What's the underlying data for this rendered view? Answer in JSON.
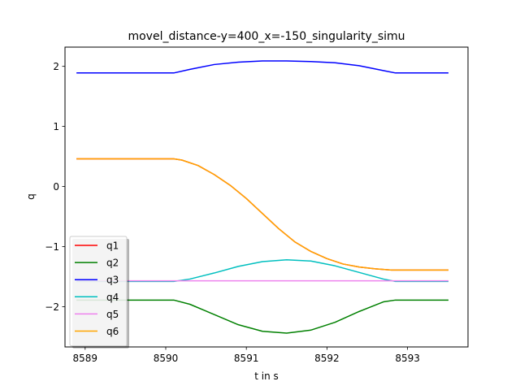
{
  "chart_data": {
    "type": "line",
    "title": "movel_distance-y=400_x=-150_singularity_simu",
    "xlabel": "t in s",
    "ylabel": "q",
    "xlim": [
      8588.75,
      8593.75
    ],
    "ylim": [
      -2.67,
      2.32
    ],
    "xticks": [
      8589,
      8590,
      8591,
      8592,
      8593
    ],
    "xtick_labels": [
      "8589",
      "8590",
      "8591",
      "8592",
      "8593"
    ],
    "yticks": [
      -2,
      -1,
      0,
      1,
      2
    ],
    "ytick_labels": [
      "−2",
      "−1",
      "0",
      "1",
      "2"
    ],
    "grid": false,
    "legend_position": "lower-left",
    "series": [
      {
        "name": "q1",
        "color": "#ff0000",
        "x": [
          8588.9,
          8590.1,
          8590.2,
          8590.4,
          8590.6,
          8590.8,
          8591.0,
          8591.2,
          8591.4,
          8591.6,
          8591.8,
          8592.0,
          8592.2,
          8592.4,
          8592.6,
          8592.8,
          8593.5
        ],
        "y": [
          0.46,
          0.46,
          0.44,
          0.35,
          0.2,
          0.02,
          -0.2,
          -0.45,
          -0.7,
          -0.92,
          -1.08,
          -1.2,
          -1.29,
          -1.34,
          -1.37,
          -1.39,
          -1.39
        ]
      },
      {
        "name": "q2",
        "color": "#008000",
        "x": [
          8588.9,
          8590.1,
          8590.3,
          8590.6,
          8590.9,
          8591.2,
          8591.5,
          8591.8,
          8592.1,
          8592.4,
          8592.7,
          8592.85,
          8593.5
        ],
        "y": [
          -1.89,
          -1.89,
          -1.96,
          -2.13,
          -2.3,
          -2.41,
          -2.44,
          -2.39,
          -2.26,
          -2.08,
          -1.92,
          -1.89,
          -1.89
        ]
      },
      {
        "name": "q3",
        "color": "#0000ff",
        "x": [
          8588.9,
          8590.1,
          8590.3,
          8590.6,
          8590.9,
          8591.2,
          8591.5,
          8591.8,
          8592.1,
          8592.4,
          8592.7,
          8592.85,
          8593.5
        ],
        "y": [
          1.89,
          1.89,
          1.95,
          2.03,
          2.07,
          2.09,
          2.09,
          2.08,
          2.06,
          2.01,
          1.93,
          1.89,
          1.89
        ]
      },
      {
        "name": "q4",
        "color": "#00bfbf",
        "x": [
          8588.9,
          8590.1,
          8590.3,
          8590.6,
          8590.9,
          8591.2,
          8591.5,
          8591.8,
          8592.1,
          8592.4,
          8592.7,
          8592.85,
          8593.5
        ],
        "y": [
          -1.58,
          -1.58,
          -1.54,
          -1.44,
          -1.33,
          -1.25,
          -1.22,
          -1.24,
          -1.32,
          -1.43,
          -1.54,
          -1.58,
          -1.58
        ]
      },
      {
        "name": "q5",
        "color": "#ee82ee",
        "x": [
          8588.9,
          8593.5
        ],
        "y": [
          -1.57,
          -1.57
        ]
      },
      {
        "name": "q6",
        "color": "#ffa500",
        "x": [
          8588.9,
          8590.1,
          8590.2,
          8590.4,
          8590.6,
          8590.8,
          8591.0,
          8591.2,
          8591.4,
          8591.6,
          8591.8,
          8592.0,
          8592.2,
          8592.4,
          8592.6,
          8592.8,
          8593.5
        ],
        "y": [
          0.46,
          0.46,
          0.44,
          0.35,
          0.2,
          0.02,
          -0.2,
          -0.45,
          -0.7,
          -0.92,
          -1.08,
          -1.2,
          -1.29,
          -1.34,
          -1.37,
          -1.39,
          -1.39
        ]
      }
    ]
  }
}
